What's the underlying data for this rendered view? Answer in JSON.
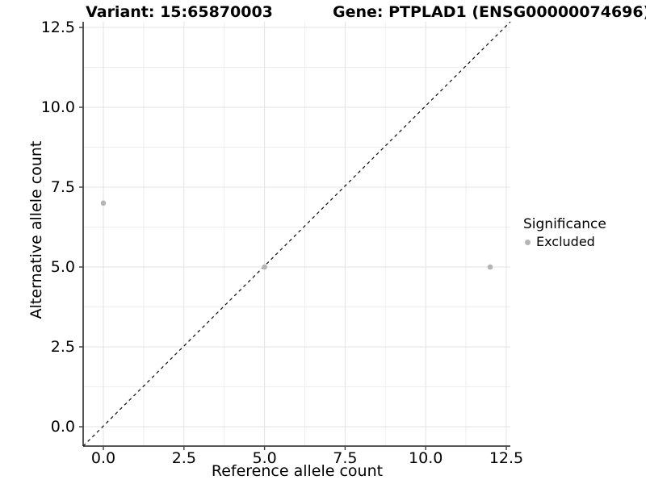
{
  "titles": {
    "variant": "Variant: 15:65870003",
    "gene": "Gene: PTPLAD1 (ENSG00000074696)"
  },
  "axes": {
    "x_title": "Reference allele count",
    "y_title": "Alternative allele count",
    "x_tick_labels": [
      "0.0",
      "2.5",
      "5.0",
      "7.5",
      "10.0",
      "12.5"
    ],
    "y_tick_labels": [
      "0.0",
      "2.5",
      "5.0",
      "7.5",
      "10.0",
      "12.5"
    ]
  },
  "legend": {
    "title": "Significance",
    "items": [
      {
        "label": "Excluded",
        "marker": "dot-icon",
        "color": "#b5b5b5"
      }
    ]
  },
  "chart_data": {
    "type": "scatter",
    "title": "Variant: 15:65870003 | Gene: PTPLAD1 (ENSG00000074696)",
    "xlabel": "Reference allele count",
    "ylabel": "Alternative allele count",
    "x_ticks": [
      0,
      2.5,
      5,
      7.5,
      10,
      12.5
    ],
    "y_ticks": [
      0,
      2.5,
      5,
      7.5,
      10,
      12.5
    ],
    "x_minor_ticks": [
      1.25,
      3.75,
      6.25,
      8.75,
      11.25
    ],
    "y_minor_ticks": [
      1.25,
      3.75,
      6.25,
      8.75,
      11.25
    ],
    "xlim": [
      -0.63,
      12.63
    ],
    "ylim": [
      -0.62,
      12.68
    ],
    "grid": "major+minor",
    "legend_position": "right",
    "series": [
      {
        "name": "Excluded",
        "color": "#b5b5b5",
        "points": [
          {
            "x": 0,
            "y": 7
          },
          {
            "x": 5,
            "y": 5
          },
          {
            "x": 12,
            "y": 5
          }
        ]
      }
    ],
    "reference_line": {
      "type": "identity y=x",
      "style": "dashed",
      "color": "#0a0a0a"
    }
  },
  "colors": {
    "background": "#ffffff",
    "grid_major": "#e3e3e3",
    "grid_minor": "#eeeeee",
    "axis_line": "#404040",
    "text": "#000000",
    "point": "#b5b5b5"
  }
}
